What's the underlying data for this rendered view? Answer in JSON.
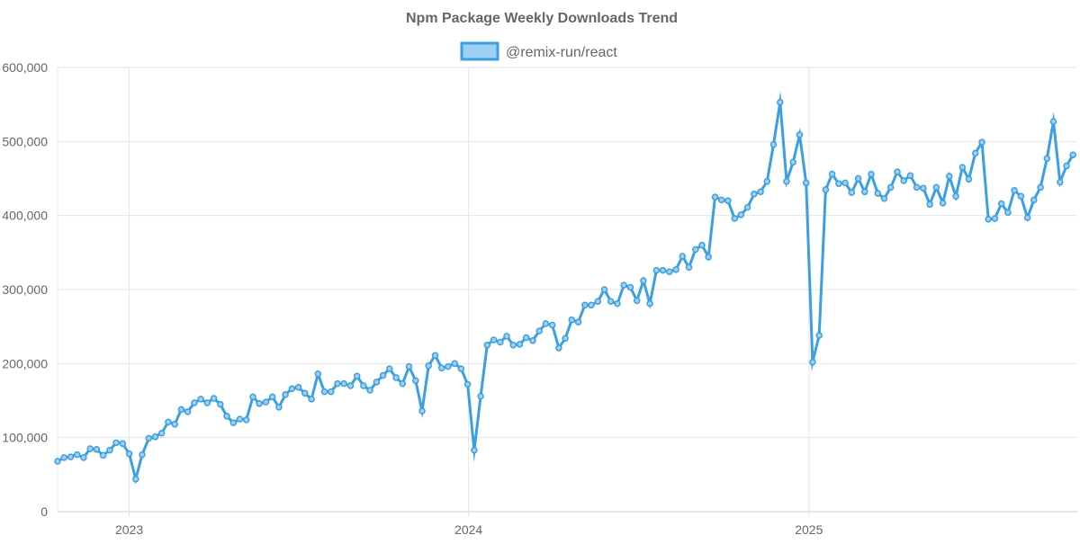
{
  "chart_data": {
    "type": "line",
    "title": "Npm Package Weekly Downloads Trend",
    "xlabel": "",
    "ylabel": "",
    "x_range": [
      "2022-10-16",
      "2025-10-05"
    ],
    "ylim": [
      0,
      600000
    ],
    "y_ticks": [
      0,
      100000,
      200000,
      300000,
      400000,
      500000,
      600000
    ],
    "y_tick_labels": [
      "0",
      "100,000",
      "200,000",
      "300,000",
      "400,000",
      "500,000",
      "600,000"
    ],
    "x_ticks": [
      "2023-01-01",
      "2024-01-01",
      "2025-01-01"
    ],
    "x_tick_labels": [
      "2023",
      "2024",
      "2025"
    ],
    "grid": true,
    "legend_position": "top-center",
    "colors": {
      "line": "#3aa0e2",
      "legend_fill": "#9dd0f3",
      "grid": "#e6e6e6",
      "text": "#666666"
    },
    "series": [
      {
        "name": "@remix-run/react",
        "points": [
          [
            "2022-10-16",
            68000
          ],
          [
            "2022-10-23",
            73000
          ],
          [
            "2022-10-30",
            74000
          ],
          [
            "2022-11-06",
            77000
          ],
          [
            "2022-11-13",
            73000
          ],
          [
            "2022-11-20",
            85000
          ],
          [
            "2022-11-27",
            84000
          ],
          [
            "2022-12-04",
            76000
          ],
          [
            "2022-12-11",
            83000
          ],
          [
            "2022-12-18",
            93000
          ],
          [
            "2022-12-25",
            92000
          ],
          [
            "2023-01-01",
            78000
          ],
          [
            "2023-01-08",
            44000
          ],
          [
            "2023-01-15",
            77000
          ],
          [
            "2023-01-22",
            99000
          ],
          [
            "2023-01-29",
            101000
          ],
          [
            "2023-02-05",
            106000
          ],
          [
            "2023-02-12",
            121000
          ],
          [
            "2023-02-19",
            118000
          ],
          [
            "2023-02-26",
            138000
          ],
          [
            "2023-03-05",
            135000
          ],
          [
            "2023-03-12",
            147000
          ],
          [
            "2023-03-19",
            152000
          ],
          [
            "2023-03-26",
            147000
          ],
          [
            "2023-04-02",
            153000
          ],
          [
            "2023-04-09",
            145000
          ],
          [
            "2023-04-16",
            129000
          ],
          [
            "2023-04-23",
            120000
          ],
          [
            "2023-04-30",
            125000
          ],
          [
            "2023-05-07",
            124000
          ],
          [
            "2023-05-14",
            155000
          ],
          [
            "2023-05-21",
            146000
          ],
          [
            "2023-05-28",
            148000
          ],
          [
            "2023-06-04",
            155000
          ],
          [
            "2023-06-11",
            141000
          ],
          [
            "2023-06-18",
            158000
          ],
          [
            "2023-06-25",
            166000
          ],
          [
            "2023-07-02",
            168000
          ],
          [
            "2023-07-09",
            160000
          ],
          [
            "2023-07-16",
            152000
          ],
          [
            "2023-07-23",
            186000
          ],
          [
            "2023-07-30",
            162000
          ],
          [
            "2023-08-06",
            162000
          ],
          [
            "2023-08-13",
            173000
          ],
          [
            "2023-08-20",
            173000
          ],
          [
            "2023-08-27",
            170000
          ],
          [
            "2023-09-03",
            183000
          ],
          [
            "2023-09-10",
            170000
          ],
          [
            "2023-09-17",
            164000
          ],
          [
            "2023-09-24",
            175000
          ],
          [
            "2023-10-01",
            184000
          ],
          [
            "2023-10-08",
            193000
          ],
          [
            "2023-10-15",
            181000
          ],
          [
            "2023-10-22",
            173000
          ],
          [
            "2023-10-29",
            196000
          ],
          [
            "2023-11-05",
            177000
          ],
          [
            "2023-11-12",
            136000
          ],
          [
            "2023-11-19",
            197000
          ],
          [
            "2023-11-26",
            211000
          ],
          [
            "2023-12-03",
            194000
          ],
          [
            "2023-12-10",
            196000
          ],
          [
            "2023-12-17",
            200000
          ],
          [
            "2023-12-24",
            193000
          ],
          [
            "2023-12-31",
            172000
          ],
          [
            "2024-01-07",
            83000
          ],
          [
            "2024-01-14",
            156000
          ],
          [
            "2024-01-21",
            225000
          ],
          [
            "2024-01-28",
            232000
          ],
          [
            "2024-02-04",
            229000
          ],
          [
            "2024-02-11",
            237000
          ],
          [
            "2024-02-18",
            225000
          ],
          [
            "2024-02-25",
            226000
          ],
          [
            "2024-03-03",
            235000
          ],
          [
            "2024-03-10",
            231000
          ],
          [
            "2024-03-17",
            244000
          ],
          [
            "2024-03-24",
            254000
          ],
          [
            "2024-03-31",
            252000
          ],
          [
            "2024-04-07",
            221000
          ],
          [
            "2024-04-14",
            234000
          ],
          [
            "2024-04-21",
            259000
          ],
          [
            "2024-04-28",
            256000
          ],
          [
            "2024-05-05",
            279000
          ],
          [
            "2024-05-12",
            279000
          ],
          [
            "2024-05-19",
            284000
          ],
          [
            "2024-05-26",
            300000
          ],
          [
            "2024-06-02",
            284000
          ],
          [
            "2024-06-09",
            281000
          ],
          [
            "2024-06-16",
            306000
          ],
          [
            "2024-06-23",
            303000
          ],
          [
            "2024-06-30",
            285000
          ],
          [
            "2024-07-07",
            312000
          ],
          [
            "2024-07-14",
            281000
          ],
          [
            "2024-07-21",
            326000
          ],
          [
            "2024-07-28",
            326000
          ],
          [
            "2024-08-04",
            324000
          ],
          [
            "2024-08-11",
            327000
          ],
          [
            "2024-08-18",
            345000
          ],
          [
            "2024-08-25",
            330000
          ],
          [
            "2024-09-01",
            354000
          ],
          [
            "2024-09-08",
            360000
          ],
          [
            "2024-09-15",
            344000
          ],
          [
            "2024-09-22",
            425000
          ],
          [
            "2024-09-29",
            421000
          ],
          [
            "2024-10-06",
            420000
          ],
          [
            "2024-10-13",
            396000
          ],
          [
            "2024-10-20",
            401000
          ],
          [
            "2024-10-27",
            411000
          ],
          [
            "2024-11-03",
            429000
          ],
          [
            "2024-11-10",
            432000
          ],
          [
            "2024-11-17",
            446000
          ],
          [
            "2024-11-24",
            496000
          ],
          [
            "2024-12-01",
            553000
          ],
          [
            "2024-12-08",
            446000
          ],
          [
            "2024-12-15",
            472000
          ],
          [
            "2024-12-22",
            509000
          ],
          [
            "2024-12-29",
            444000
          ],
          [
            "2025-01-05",
            202000
          ],
          [
            "2025-01-12",
            238000
          ],
          [
            "2025-01-19",
            435000
          ],
          [
            "2025-01-26",
            456000
          ],
          [
            "2025-02-02",
            443000
          ],
          [
            "2025-02-09",
            444000
          ],
          [
            "2025-02-16",
            431000
          ],
          [
            "2025-02-23",
            450000
          ],
          [
            "2025-03-02",
            432000
          ],
          [
            "2025-03-09",
            456000
          ],
          [
            "2025-03-16",
            430000
          ],
          [
            "2025-03-23",
            423000
          ],
          [
            "2025-03-30",
            438000
          ],
          [
            "2025-04-06",
            459000
          ],
          [
            "2025-04-13",
            447000
          ],
          [
            "2025-04-20",
            454000
          ],
          [
            "2025-04-27",
            438000
          ],
          [
            "2025-05-04",
            437000
          ],
          [
            "2025-05-11",
            415000
          ],
          [
            "2025-05-18",
            438000
          ],
          [
            "2025-05-25",
            417000
          ],
          [
            "2025-06-01",
            453000
          ],
          [
            "2025-06-08",
            426000
          ],
          [
            "2025-06-15",
            465000
          ],
          [
            "2025-06-22",
            449000
          ],
          [
            "2025-06-29",
            484000
          ],
          [
            "2025-07-06",
            499000
          ],
          [
            "2025-07-13",
            395000
          ],
          [
            "2025-07-20",
            396000
          ],
          [
            "2025-07-27",
            416000
          ],
          [
            "2025-08-03",
            404000
          ],
          [
            "2025-08-10",
            434000
          ],
          [
            "2025-08-17",
            426000
          ],
          [
            "2025-08-24",
            397000
          ],
          [
            "2025-08-31",
            421000
          ],
          [
            "2025-09-07",
            438000
          ],
          [
            "2025-09-14",
            477000
          ],
          [
            "2025-09-21",
            527000
          ],
          [
            "2025-09-28",
            445000
          ],
          [
            "2025-10-05",
            467000
          ],
          [
            "2025-10-12",
            482000
          ]
        ]
      }
    ]
  }
}
